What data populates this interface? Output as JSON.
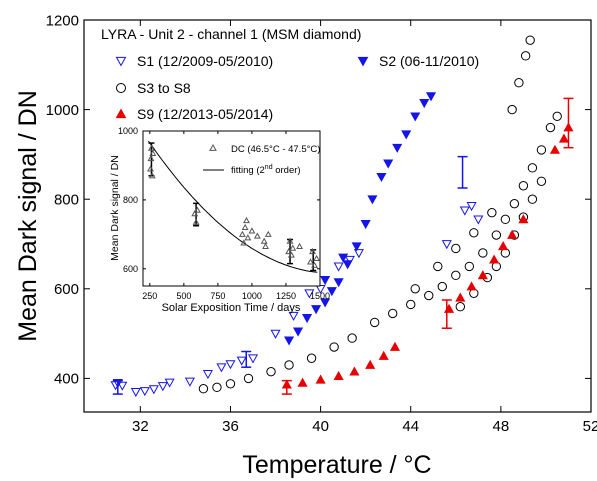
{
  "chart_data": [
    {
      "type": "scatter",
      "xlabel": "Temperature / °C",
      "ylabel": "Mean Dark signal / DN",
      "xlim": [
        29.5,
        52
      ],
      "ylim": [
        325,
        1200
      ],
      "xticks": [
        32,
        36,
        40,
        44,
        48,
        52
      ],
      "yticks": [
        400,
        600,
        800,
        1000,
        1200
      ],
      "legend_title": "LYRA - Unit 2 - channel 1 (MSM diamond)",
      "legend_placement": "top-left",
      "grid": false,
      "series": [
        {
          "name": "S1 (12/2009-05/2010)",
          "marker": "triangle-down-open",
          "color": "#1515e6",
          "points": [
            [
              30.9,
              385
            ],
            [
              31.0,
              390
            ],
            [
              31.2,
              384
            ],
            [
              31.8,
              370
            ],
            [
              32.2,
              372
            ],
            [
              32.6,
              376
            ],
            [
              33.0,
              383
            ],
            [
              33.3,
              391
            ],
            [
              34.2,
              393
            ],
            [
              35.0,
              410
            ],
            [
              35.6,
              425
            ],
            [
              36.0,
              432
            ],
            [
              36.5,
              440
            ],
            [
              37.0,
              445
            ],
            [
              38.0,
              500
            ],
            [
              38.8,
              540
            ],
            [
              39.5,
              590
            ],
            [
              40.0,
              600
            ],
            [
              40.8,
              650
            ],
            [
              41.3,
              665
            ],
            [
              41.7,
              680
            ],
            [
              45.6,
              700
            ],
            [
              46.4,
              775
            ],
            [
              46.7,
              785
            ],
            [
              47.0,
              755
            ]
          ]
        },
        {
          "name": "S2 (06-11/2010)",
          "marker": "triangle-down-filled",
          "color": "#1515e6",
          "points": [
            [
              38.6,
              485
            ],
            [
              39.0,
              505
            ],
            [
              39.4,
              535
            ],
            [
              39.8,
              555
            ],
            [
              40.2,
              570
            ],
            [
              40.5,
              595
            ],
            [
              40.8,
              615
            ],
            [
              41.2,
              655
            ],
            [
              41.6,
              695
            ],
            [
              42.0,
              745
            ],
            [
              42.3,
              800
            ],
            [
              42.7,
              850
            ],
            [
              43.0,
              880
            ],
            [
              43.4,
              915
            ],
            [
              43.8,
              945
            ],
            [
              44.2,
              985
            ],
            [
              44.6,
              1015
            ],
            [
              44.9,
              1030
            ],
            [
              40.2,
              620
            ],
            [
              41.0,
              670
            ]
          ]
        },
        {
          "name": "S3 to S8",
          "marker": "circle-open",
          "color": "#000000",
          "points": [
            [
              34.8,
              377
            ],
            [
              35.4,
              380
            ],
            [
              36.0,
              388
            ],
            [
              36.8,
              400
            ],
            [
              37.8,
              415
            ],
            [
              38.6,
              430
            ],
            [
              39.6,
              445
            ],
            [
              40.6,
              470
            ],
            [
              41.4,
              490
            ],
            [
              42.4,
              525
            ],
            [
              43.2,
              545
            ],
            [
              44.0,
              565
            ],
            [
              44.8,
              585
            ],
            [
              45.4,
              605
            ],
            [
              46.0,
              630
            ],
            [
              46.6,
              650
            ],
            [
              47.2,
              680
            ],
            [
              47.8,
              720
            ],
            [
              48.2,
              755
            ],
            [
              48.6,
              790
            ],
            [
              49.0,
              830
            ],
            [
              49.4,
              870
            ],
            [
              49.8,
              910
            ],
            [
              50.2,
              960
            ],
            [
              50.5,
              985
            ],
            [
              46.2,
              560
            ],
            [
              46.8,
              590
            ],
            [
              47.4,
              625
            ],
            [
              47.8,
              650
            ],
            [
              48.2,
              680
            ],
            [
              48.6,
              720
            ],
            [
              49.0,
              760
            ],
            [
              49.4,
              800
            ],
            [
              49.8,
              840
            ],
            [
              48.5,
              1000
            ],
            [
              48.8,
              1060
            ],
            [
              49.1,
              1120
            ],
            [
              49.3,
              1155
            ],
            [
              44.2,
              600
            ],
            [
              45.2,
              650
            ],
            [
              46.0,
              690
            ],
            [
              46.8,
              725
            ],
            [
              47.6,
              770
            ]
          ]
        },
        {
          "name": "S9 (12/2013-05/2014)",
          "marker": "triangle-up-filled",
          "color": "#e60000",
          "points": [
            [
              38.5,
              386
            ],
            [
              39.2,
              390
            ],
            [
              40.0,
              397
            ],
            [
              40.8,
              405
            ],
            [
              41.5,
              415
            ],
            [
              42.2,
              430
            ],
            [
              42.8,
              450
            ],
            [
              43.3,
              470
            ],
            [
              45.7,
              555
            ],
            [
              46.2,
              580
            ],
            [
              46.7,
              605
            ],
            [
              47.2,
              630
            ],
            [
              47.7,
              665
            ],
            [
              48.1,
              695
            ],
            [
              48.5,
              720
            ],
            [
              49.0,
              755
            ],
            [
              50.4,
              910
            ],
            [
              50.8,
              935
            ],
            [
              51.0,
              960
            ]
          ]
        }
      ],
      "error_bars": [
        {
          "series": "S1 (12/2009-05/2010)",
          "x": 31.0,
          "y": 385,
          "low": 365,
          "high": 395
        },
        {
          "series": "S1 (12/2009-05/2010)",
          "x": 36.7,
          "y": 440,
          "low": 425,
          "high": 460
        },
        {
          "series": "S2 (06-11/2010)",
          "x": 46.3,
          "y": 860,
          "low": 825,
          "high": 895
        },
        {
          "series": "S9 (12/2013-05/2014)",
          "x": 38.5,
          "y": 386,
          "low": 365,
          "high": 395
        },
        {
          "series": "S9 (12/2013-05/2014)",
          "x": 45.6,
          "y": 545,
          "low": 512,
          "high": 575
        },
        {
          "series": "S9 (12/2013-05/2014)",
          "x": 51.0,
          "y": 965,
          "low": 915,
          "high": 1025
        }
      ]
    },
    {
      "type": "scatter",
      "inset": true,
      "xlabel": "Solar Exposition Time / days",
      "ylabel": "Mean Dark signal / DN",
      "xlim": [
        200,
        1500
      ],
      "ylim": [
        550,
        1000
      ],
      "xticks": [
        250,
        500,
        750,
        1000,
        1250,
        1500
      ],
      "yticks": [
        600,
        800,
        1000
      ],
      "legend_placement": "top-right",
      "series": [
        {
          "name": "DC (46.5°C - 47.5°C)",
          "marker": "triangle-up-open",
          "color": "#555555",
          "points": [
            [
              255,
              890
            ],
            [
              258,
              920
            ],
            [
              262,
              950
            ],
            [
              268,
              870
            ],
            [
              272,
              935
            ],
            [
              580,
              760
            ],
            [
              590,
              735
            ],
            [
              600,
              770
            ],
            [
              930,
              700
            ],
            [
              940,
              675
            ],
            [
              950,
              720
            ],
            [
              960,
              740
            ],
            [
              970,
              690
            ],
            [
              1000,
              710
            ],
            [
              1040,
              695
            ],
            [
              1090,
              680
            ],
            [
              1100,
              665
            ],
            [
              1120,
              700
            ],
            [
              1270,
              650
            ],
            [
              1280,
              680
            ],
            [
              1290,
              640
            ],
            [
              1300,
              660
            ],
            [
              1350,
              665
            ],
            [
              1430,
              620
            ],
            [
              1445,
              650
            ],
            [
              1460,
              610
            ],
            [
              1475,
              630
            ]
          ]
        },
        {
          "name": "fitting (2",
          "name_sup": "nd",
          "name_tail": " order)",
          "type": "line",
          "color": "#000000",
          "coefficients": [
            1120.9,
            -0.6756,
            0.000214
          ]
        }
      ],
      "error_bars": [
        {
          "x": 262,
          "y": 910,
          "low": 870,
          "high": 965
        },
        {
          "x": 590,
          "y": 755,
          "low": 725,
          "high": 790
        },
        {
          "x": 1280,
          "y": 650,
          "low": 615,
          "high": 685
        },
        {
          "x": 1450,
          "y": 625,
          "low": 595,
          "high": 655
        }
      ]
    }
  ]
}
